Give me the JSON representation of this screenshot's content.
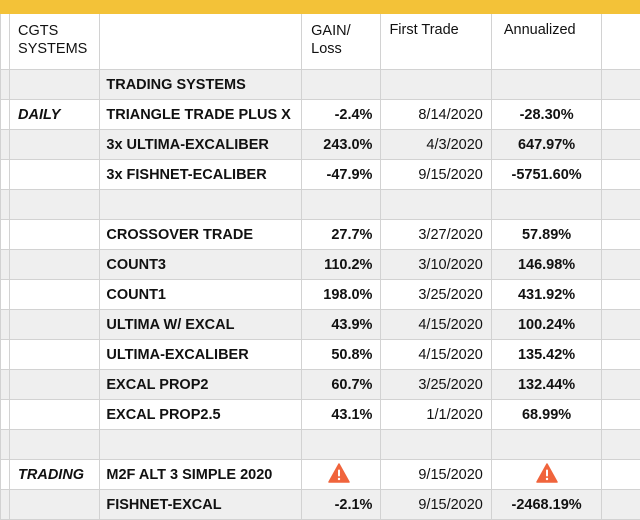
{
  "header": {
    "col1": "CGTS SYSTEMS",
    "col3": "GAIN/ Loss",
    "col4": "First Trade",
    "col5": "Annualized"
  },
  "section_title": "TRADING SYSTEMS",
  "rows": [
    {
      "label": "",
      "system": "TRADING SYSTEMS",
      "gain": "",
      "date": "",
      "annual": "",
      "shade": true
    },
    {
      "label": "DAILY",
      "system": "TRIANGLE TRADE PLUS X",
      "gain": "-2.4%",
      "date": "8/14/2020",
      "annual": "-28.30%",
      "shade": false
    },
    {
      "label": "",
      "system": "3x ULTIMA-EXCALIBER",
      "gain": "243.0%",
      "date": "4/3/2020",
      "annual": "647.97%",
      "shade": true
    },
    {
      "label": "",
      "system": "3x FISHNET-ECALIBER",
      "gain": "-47.9%",
      "date": "9/15/2020",
      "annual": "-5751.60%",
      "shade": false
    },
    {
      "label": "",
      "system": "",
      "gain": "",
      "date": "",
      "annual": "",
      "shade": true
    },
    {
      "label": "",
      "system": "CROSSOVER TRADE",
      "gain": "27.7%",
      "date": "3/27/2020",
      "annual": "57.89%",
      "shade": false
    },
    {
      "label": "",
      "system": "COUNT3",
      "gain": "110.2%",
      "date": "3/10/2020",
      "annual": "146.98%",
      "shade": true
    },
    {
      "label": "",
      "system": "COUNT1",
      "gain": "198.0%",
      "date": "3/25/2020",
      "annual": "431.92%",
      "shade": false
    },
    {
      "label": "",
      "system": "ULTIMA W/ EXCAL",
      "gain": "43.9%",
      "date": "4/15/2020",
      "annual": "100.24%",
      "shade": true
    },
    {
      "label": "",
      "system": "ULTIMA-EXCALIBER",
      "gain": "50.8%",
      "date": "4/15/2020",
      "annual": "135.42%",
      "shade": false
    },
    {
      "label": "",
      "system": "EXCAL PROP2",
      "gain": "60.7%",
      "date": "3/25/2020",
      "annual": "132.44%",
      "shade": true
    },
    {
      "label": "",
      "system": "EXCAL PROP2.5",
      "gain": "43.1%",
      "date": "1/1/2020",
      "annual": "68.99%",
      "shade": false
    },
    {
      "label": "",
      "system": "",
      "gain": "",
      "date": "",
      "annual": "",
      "shade": true
    },
    {
      "label": "TRADING",
      "system": "M2F ALT 3 SIMPLE 2020",
      "gain": "",
      "date": "9/15/2020",
      "annual": "",
      "shade": false,
      "warn": true
    },
    {
      "label": "",
      "system": "FISHNET-EXCAL",
      "gain": "-2.1%",
      "date": "9/15/2020",
      "annual": "-2468.19%",
      "shade": true
    }
  ],
  "colors": {
    "top_bar": "#f3c238",
    "row_shade": "#efefef",
    "warning": "#f0643c"
  },
  "icons": {
    "warning": "warning-triangle-icon"
  }
}
